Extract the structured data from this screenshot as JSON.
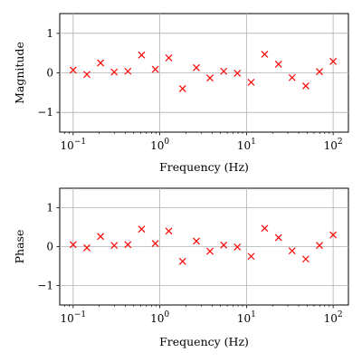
{
  "chart_data": [
    {
      "type": "scatter",
      "title": "",
      "xlabel": "Frequency (Hz)",
      "ylabel": "Magnitude",
      "xscale": "log",
      "xlim": [
        0.07,
        150
      ],
      "ylim": [
        -1.5,
        1.5
      ],
      "grid": true,
      "marker": "x",
      "marker_color": "#ff0000",
      "x_ticks": [
        {
          "value": 0.1,
          "base": "10",
          "exp": "−1"
        },
        {
          "value": 1,
          "base": "10",
          "exp": "0"
        },
        {
          "value": 10,
          "base": "10",
          "exp": "1"
        },
        {
          "value": 100,
          "base": "10",
          "exp": "2"
        }
      ],
      "y_ticks": [
        {
          "value": -1,
          "label": "−1"
        },
        {
          "value": 0,
          "label": "0"
        },
        {
          "value": 1,
          "label": "1"
        }
      ],
      "series": [
        {
          "x": [
            0.1,
            0.144,
            0.207,
            0.298,
            0.428,
            0.616,
            0.886,
            1.27,
            1.83,
            2.64,
            3.79,
            5.46,
            7.85,
            11.3,
            16.2,
            23.4,
            33.6,
            48.3,
            69.5,
            100
          ],
          "y": [
            0.07,
            -0.04,
            0.25,
            0.02,
            0.04,
            0.45,
            0.09,
            0.38,
            -0.4,
            0.13,
            -0.13,
            0.04,
            -0.01,
            -0.24,
            0.47,
            0.22,
            -0.12,
            -0.33,
            0.03,
            0.29
          ]
        }
      ]
    },
    {
      "type": "scatter",
      "title": "",
      "xlabel": "Frequency (Hz)",
      "ylabel": "Phase",
      "xscale": "log",
      "xlim": [
        0.07,
        150
      ],
      "ylim": [
        -1.5,
        1.5
      ],
      "grid": true,
      "marker": "x",
      "marker_color": "#ff0000",
      "x_ticks": [
        {
          "value": 0.1,
          "base": "10",
          "exp": "−1"
        },
        {
          "value": 1,
          "base": "10",
          "exp": "0"
        },
        {
          "value": 10,
          "base": "10",
          "exp": "1"
        },
        {
          "value": 100,
          "base": "10",
          "exp": "2"
        }
      ],
      "y_ticks": [
        {
          "value": -1,
          "label": "−1"
        },
        {
          "value": 0,
          "label": "0"
        },
        {
          "value": 1,
          "label": "1"
        }
      ],
      "series": [
        {
          "x": [
            0.1,
            0.144,
            0.207,
            0.298,
            0.428,
            0.616,
            0.886,
            1.27,
            1.83,
            2.64,
            3.79,
            5.46,
            7.85,
            11.3,
            16.2,
            23.4,
            33.6,
            48.3,
            69.5,
            100
          ],
          "y": [
            0.05,
            -0.03,
            0.26,
            0.03,
            0.05,
            0.45,
            0.08,
            0.4,
            -0.38,
            0.14,
            -0.12,
            0.04,
            -0.01,
            -0.25,
            0.47,
            0.23,
            -0.11,
            -0.32,
            0.03,
            0.3
          ]
        }
      ]
    }
  ]
}
